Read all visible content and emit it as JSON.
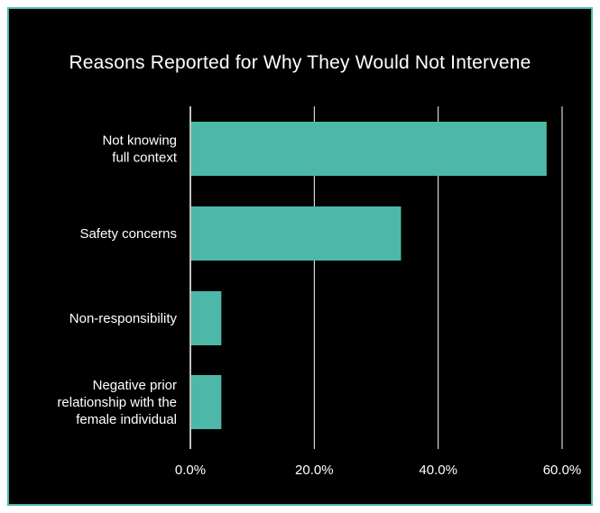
{
  "chart_data": {
    "type": "bar",
    "orientation": "horizontal",
    "title": "Reasons Reported for Why They Would Not Intervene",
    "categories": [
      [
        "Not knowing",
        "full context"
      ],
      [
        "Safety concerns"
      ],
      [
        "Non-responsibility"
      ],
      [
        "Negative prior",
        "relationship with the",
        "female individual"
      ]
    ],
    "values": [
      57.5,
      34,
      5,
      5
    ],
    "xlim": [
      0,
      60
    ],
    "x_ticks": [
      0,
      20,
      40,
      60
    ],
    "x_tick_labels": [
      "0.0%",
      "20.0%",
      "40.0%",
      "60.0%"
    ],
    "grid": true,
    "colors": {
      "bar": "#4db8a8",
      "background": "#000000",
      "text": "#ffffff",
      "grid": "#ffffff",
      "border": "#4db8a8"
    }
  }
}
